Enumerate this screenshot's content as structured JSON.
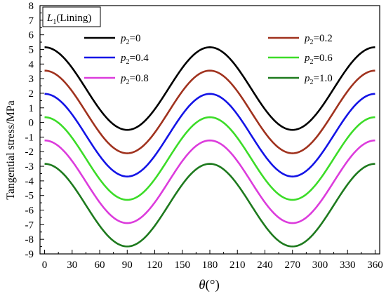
{
  "chart_data": {
    "type": "line",
    "panel_label": {
      "symbol": "L",
      "subscript": "1",
      "text": "(Lining)"
    },
    "xlabel": {
      "symbol": "θ",
      "unit": "(°)"
    },
    "ylabel": "Tangential stress/MPa",
    "xlim": [
      -5,
      365
    ],
    "ylim": [
      -9,
      8
    ],
    "xticks": [
      0,
      30,
      60,
      90,
      120,
      150,
      180,
      210,
      240,
      270,
      300,
      330,
      360
    ],
    "yticks": [
      -9,
      -8,
      -7,
      -6,
      -5,
      -4,
      -3,
      -2,
      -1,
      0,
      1,
      2,
      3,
      4,
      5,
      6,
      7,
      8
    ],
    "grid": false,
    "legend_position": "top",
    "series": [
      {
        "name": "p2=0",
        "legend_symbol": "p",
        "legend_sub": "2",
        "legend_value": "=0",
        "color": "#000000",
        "mean": 2.32,
        "amplitude": 2.83
      },
      {
        "name": "p2=0.2",
        "legend_symbol": "p",
        "legend_sub": "2",
        "legend_value": "=0.2",
        "color": "#a0321e",
        "mean": 0.72,
        "amplitude": 2.83
      },
      {
        "name": "p2=0.4",
        "legend_symbol": "p",
        "legend_sub": "2",
        "legend_value": "=0.4",
        "color": "#1414e6",
        "mean": -0.87,
        "amplitude": 2.83
      },
      {
        "name": "p2=0.6",
        "legend_symbol": "p",
        "legend_sub": "2",
        "legend_value": "=0.6",
        "color": "#3cdc28",
        "mean": -2.47,
        "amplitude": 2.83
      },
      {
        "name": "p2=0.8",
        "legend_symbol": "p",
        "legend_sub": "2",
        "legend_value": "=0.8",
        "color": "#dc3cdc",
        "mean": -4.06,
        "amplitude": 2.83
      },
      {
        "name": "p2=1.0",
        "legend_symbol": "p",
        "legend_sub": "2",
        "legend_value": "=1.0",
        "color": "#1e7a1e",
        "mean": -5.66,
        "amplitude": 2.83
      }
    ],
    "curve_x": [
      0,
      10,
      20,
      30,
      40,
      50,
      60,
      70,
      80,
      90,
      100,
      110,
      120,
      130,
      140,
      150,
      160,
      170,
      180,
      190,
      200,
      210,
      220,
      230,
      240,
      250,
      260,
      270,
      280,
      290,
      300,
      310,
      320,
      330,
      340,
      350,
      360
    ],
    "curve_model": "y = mean + amplitude * cos(2θ)"
  }
}
